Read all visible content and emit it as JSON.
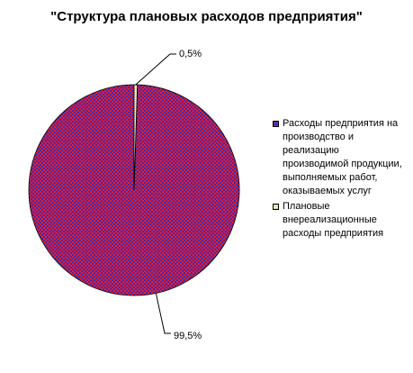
{
  "chart_data": {
    "type": "pie",
    "title": "\"Структура плановых расходов предприятия\"",
    "slices": [
      {
        "name": "Расходы предприятия на производство и реализацию производимой продукции, выполняемых работ, оказываемых услуг",
        "value": 99.5,
        "label": "99,5%",
        "color": "#ff1a1a",
        "pattern_color": "#1f2bd0"
      },
      {
        "name": "Плановые внереализационные расходы предприятия",
        "value": 0.5,
        "label": "0,5%",
        "color": "#ffffff",
        "pattern_color": "#d8c89a"
      }
    ],
    "legend_position": "right"
  }
}
